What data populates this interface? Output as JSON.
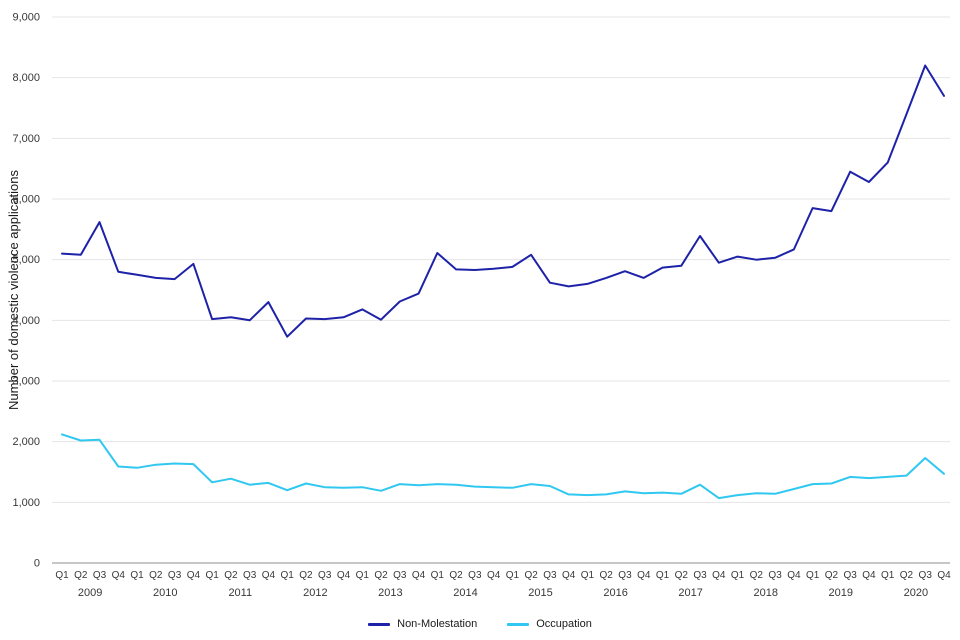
{
  "chart_data": {
    "type": "line",
    "title": "",
    "ylabel": "Number of domestic violence applications",
    "xlabel": "",
    "ylim": [
      0,
      9000
    ],
    "ytick_step": 1000,
    "ytick_labels": [
      "0",
      "1,000",
      "2,000",
      "3,000",
      "4,000",
      "5,000",
      "6,000",
      "7,000",
      "8,000",
      "9,000"
    ],
    "grid": "horizontal",
    "legend_position": "bottom-center",
    "grid_color": "#e4e4e4",
    "axis_color": "#8c8c8c",
    "x": {
      "quarter_pattern": [
        "Q1",
        "Q2",
        "Q3",
        "Q4"
      ],
      "years": [
        "2009",
        "2010",
        "2011",
        "2012",
        "2013",
        "2014",
        "2015",
        "2016",
        "2017",
        "2018",
        "2019",
        "2020"
      ]
    },
    "series": [
      {
        "name": "Non-Molestation",
        "color": "#1e22a8",
        "values": [
          5100,
          5080,
          5620,
          4800,
          4750,
          4700,
          4680,
          4930,
          4020,
          4050,
          4000,
          4300,
          3730,
          4030,
          4020,
          4050,
          4180,
          4010,
          4310,
          4440,
          5110,
          4840,
          4830,
          4850,
          4880,
          5080,
          4620,
          4560,
          4600,
          4700,
          4810,
          4700,
          4870,
          4900,
          5390,
          4950,
          5050,
          5000,
          5030,
          5170,
          5850,
          5800,
          6450,
          6280,
          6600,
          7400,
          8200,
          7700
        ]
      },
      {
        "name": "Occupation",
        "color": "#30c8f0",
        "values": [
          2120,
          2020,
          2030,
          1590,
          1570,
          1620,
          1640,
          1630,
          1330,
          1390,
          1290,
          1320,
          1200,
          1310,
          1250,
          1240,
          1250,
          1190,
          1300,
          1280,
          1300,
          1290,
          1260,
          1250,
          1240,
          1300,
          1270,
          1130,
          1120,
          1130,
          1180,
          1150,
          1160,
          1140,
          1290,
          1070,
          1120,
          1150,
          1140,
          1220,
          1300,
          1310,
          1420,
          1400,
          1420,
          1440,
          1730,
          1470
        ]
      }
    ]
  }
}
